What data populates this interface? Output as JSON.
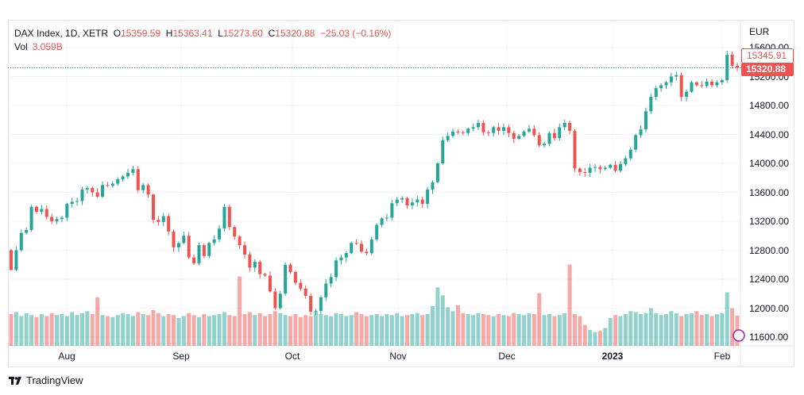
{
  "header": {
    "symbol": "DAX Index, 1D, XETR",
    "o_label": "O",
    "open": "15359.59",
    "h_label": "H",
    "high": "15363.41",
    "l_label": "L",
    "low": "15273.60",
    "c_label": "C",
    "close": "15320.88",
    "change": "−25.03 (−0.16%)",
    "vol_label": "Vol",
    "vol": "3.059B"
  },
  "axis": {
    "currency": "EUR",
    "last_high_tag": "15345.91",
    "last_price_tag": "15320.88"
  },
  "brand": "TradingView",
  "colors": {
    "up": "#26a69a",
    "down": "#ef5350",
    "grid": "#f0f3fa"
  },
  "chart_data": {
    "type": "candlestick",
    "title": "DAX Index, 1D, XETR",
    "ylabel": "EUR",
    "ylim": [
      11600,
      15600
    ],
    "yticks": [
      "15600.00",
      "15200.00",
      "14800.00",
      "14400.00",
      "14000.00",
      "13600.00",
      "13200.00",
      "12800.00",
      "12400.00",
      "12000.00",
      "11600.00"
    ],
    "xticks": [
      "Aug",
      "Sep",
      "Oct",
      "Nov",
      "Dec",
      "2023",
      "Feb"
    ],
    "first_open": 12800,
    "close": [
      12530,
      12800,
      13040,
      13080,
      13400,
      13330,
      13370,
      13260,
      13200,
      13230,
      13250,
      13440,
      13470,
      13480,
      13640,
      13660,
      13600,
      13540,
      13700,
      13690,
      13720,
      13780,
      13820,
      13870,
      13920,
      13630,
      13700,
      13570,
      13220,
      13190,
      13270,
      13060,
      12840,
      12900,
      13000,
      12700,
      12620,
      12870,
      12720,
      12900,
      12950,
      13100,
      13400,
      13120,
      12990,
      12870,
      12740,
      12560,
      12640,
      12470,
      12450,
      12230,
      12000,
      12200,
      12600,
      12500,
      12350,
      12270,
      12170,
      11950,
      11960,
      12150,
      12340,
      12430,
      12660,
      12700,
      12760,
      12900,
      12890,
      12780,
      12760,
      12950,
      13150,
      13240,
      13250,
      13450,
      13500,
      13520,
      13420,
      13460,
      13500,
      13440,
      13640,
      13740,
      14000,
      14320,
      14380,
      14440,
      14430,
      14420,
      14480,
      14500,
      14560,
      14430,
      14420,
      14500,
      14450,
      14500,
      14420,
      14340,
      14380,
      14440,
      14480,
      14390,
      14250,
      14270,
      14420,
      14350,
      14500,
      14560,
      14450,
      13930,
      13880,
      13870,
      13940,
      13950,
      13920,
      13940,
      13980,
      13900,
      13990,
      14070,
      14190,
      14390,
      14470,
      14720,
      14920,
      15040,
      15080,
      15120,
      15200,
      15220,
      14920,
      14990,
      15120,
      15080,
      15070,
      15130,
      15080,
      15120,
      15150,
      15500,
      15350,
      15320.88
    ],
    "volume_b": [
      3.2,
      3.4,
      3.0,
      3.3,
      3.1,
      2.9,
      3.2,
      3.0,
      3.3,
      3.1,
      3.2,
      3.0,
      3.4,
      3.1,
      3.3,
      3.5,
      3.2,
      4.9,
      3.1,
      3.0,
      2.9,
      3.1,
      3.3,
      3.2,
      3.0,
      3.4,
      3.2,
      3.1,
      3.6,
      3.3,
      3.0,
      3.2,
      3.1,
      2.8,
      3.0,
      3.3,
      3.1,
      2.9,
      3.2,
      3.0,
      3.1,
      3.2,
      3.4,
      3.1,
      3.0,
      7.0,
      3.2,
      3.4,
      3.1,
      3.3,
      3.0,
      3.2,
      3.5,
      3.3,
      3.1,
      3.0,
      3.2,
      2.9,
      3.1,
      3.0,
      3.4,
      3.2,
      3.1,
      3.0,
      3.3,
      3.2,
      3.0,
      3.1,
      3.4,
      3.2,
      3.0,
      3.1,
      3.2,
      3.0,
      3.2,
      3.1,
      3.3,
      3.0,
      3.1,
      3.2,
      3.3,
      3.1,
      3.2,
      4.0,
      5.9,
      5.1,
      3.9,
      3.5,
      4.1,
      3.3,
      3.2,
      3.1,
      3.3,
      3.2,
      3.1,
      3.0,
      3.2,
      3.1,
      3.0,
      3.3,
      3.2,
      3.1,
      3.3,
      3.2,
      5.3,
      3.1,
      3.2,
      3.0,
      3.1,
      3.3,
      8.2,
      3.2,
      3.0,
      2.1,
      1.6,
      1.4,
      1.5,
      1.8,
      2.8,
      3.1,
      3.0,
      3.2,
      3.5,
      3.4,
      3.2,
      3.3,
      3.8,
      3.3,
      3.1,
      3.2,
      3.5,
      3.3,
      3.0,
      3.2,
      3.3,
      3.5,
      3.1,
      3.2,
      3.0,
      3.2,
      3.3,
      5.4,
      3.8,
      3.059
    ]
  }
}
